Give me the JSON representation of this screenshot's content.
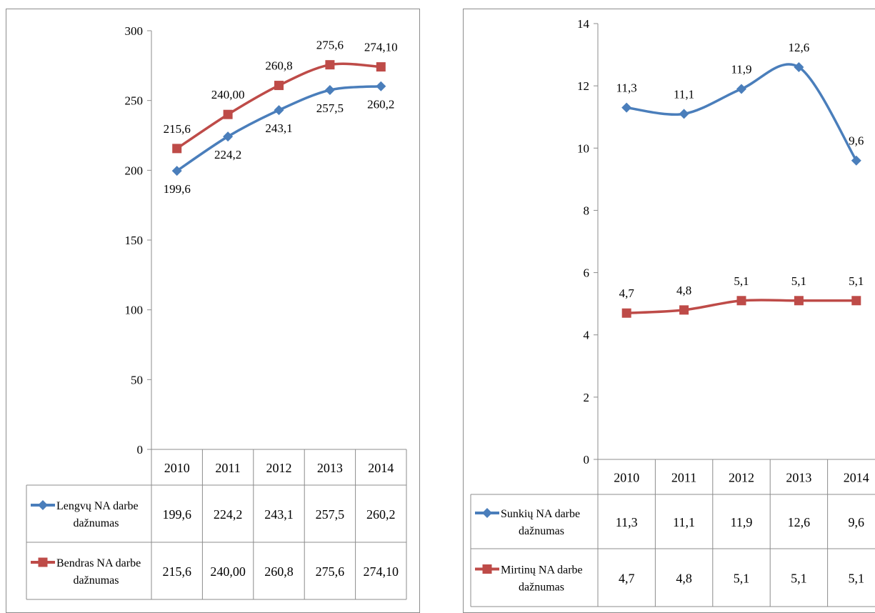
{
  "chart_data": [
    {
      "type": "line",
      "categories": [
        "2010",
        "2011",
        "2012",
        "2013",
        "2014"
      ],
      "ylim": [
        0,
        300
      ],
      "yticks": [
        "0",
        "50",
        "100",
        "150",
        "200",
        "250",
        "300"
      ],
      "ytick_values": [
        0,
        50,
        100,
        150,
        200,
        250,
        300
      ],
      "grid": false,
      "legend": "data-table",
      "series": [
        {
          "name": [
            "Lengvų NA darbe",
            "dažnumas"
          ],
          "color": "#4a7ebb",
          "marker": "diamond",
          "values": [
            199.6,
            224.2,
            243.1,
            257.5,
            260.2
          ],
          "labels": [
            "199,6",
            "224,2",
            "243,1",
            "257,5",
            "260,2"
          ],
          "label_position": "below"
        },
        {
          "name": [
            "Bendras NA darbe",
            "dažnumas"
          ],
          "color": "#be4b48",
          "marker": "square",
          "values": [
            215.6,
            240.0,
            260.8,
            275.6,
            274.1
          ],
          "labels": [
            "215,6",
            "240,00",
            "260,8",
            "275,6",
            "274,10"
          ],
          "label_position": "above"
        }
      ]
    },
    {
      "type": "line",
      "categories": [
        "2010",
        "2011",
        "2012",
        "2013",
        "2014"
      ],
      "ylim": [
        0,
        14
      ],
      "yticks": [
        "0",
        "2",
        "4",
        "6",
        "8",
        "10",
        "12",
        "14"
      ],
      "ytick_values": [
        0,
        2,
        4,
        6,
        8,
        10,
        12,
        14
      ],
      "grid": false,
      "legend": "data-table",
      "series": [
        {
          "name": [
            "Sunkių NA darbe",
            "dažnumas"
          ],
          "color": "#4a7ebb",
          "marker": "diamond",
          "values": [
            11.3,
            11.1,
            11.9,
            12.6,
            9.6
          ],
          "labels": [
            "11,3",
            "11,1",
            "11,9",
            "12,6",
            "9,6"
          ],
          "label_position": "above"
        },
        {
          "name": [
            "Mirtinų NA darbe",
            "dažnumas"
          ],
          "color": "#be4b48",
          "marker": "square",
          "values": [
            4.7,
            4.8,
            5.1,
            5.1,
            5.1
          ],
          "labels": [
            "4,7",
            "4,8",
            "5,1",
            "5,1",
            "5,1"
          ],
          "label_position": "above"
        }
      ]
    }
  ]
}
